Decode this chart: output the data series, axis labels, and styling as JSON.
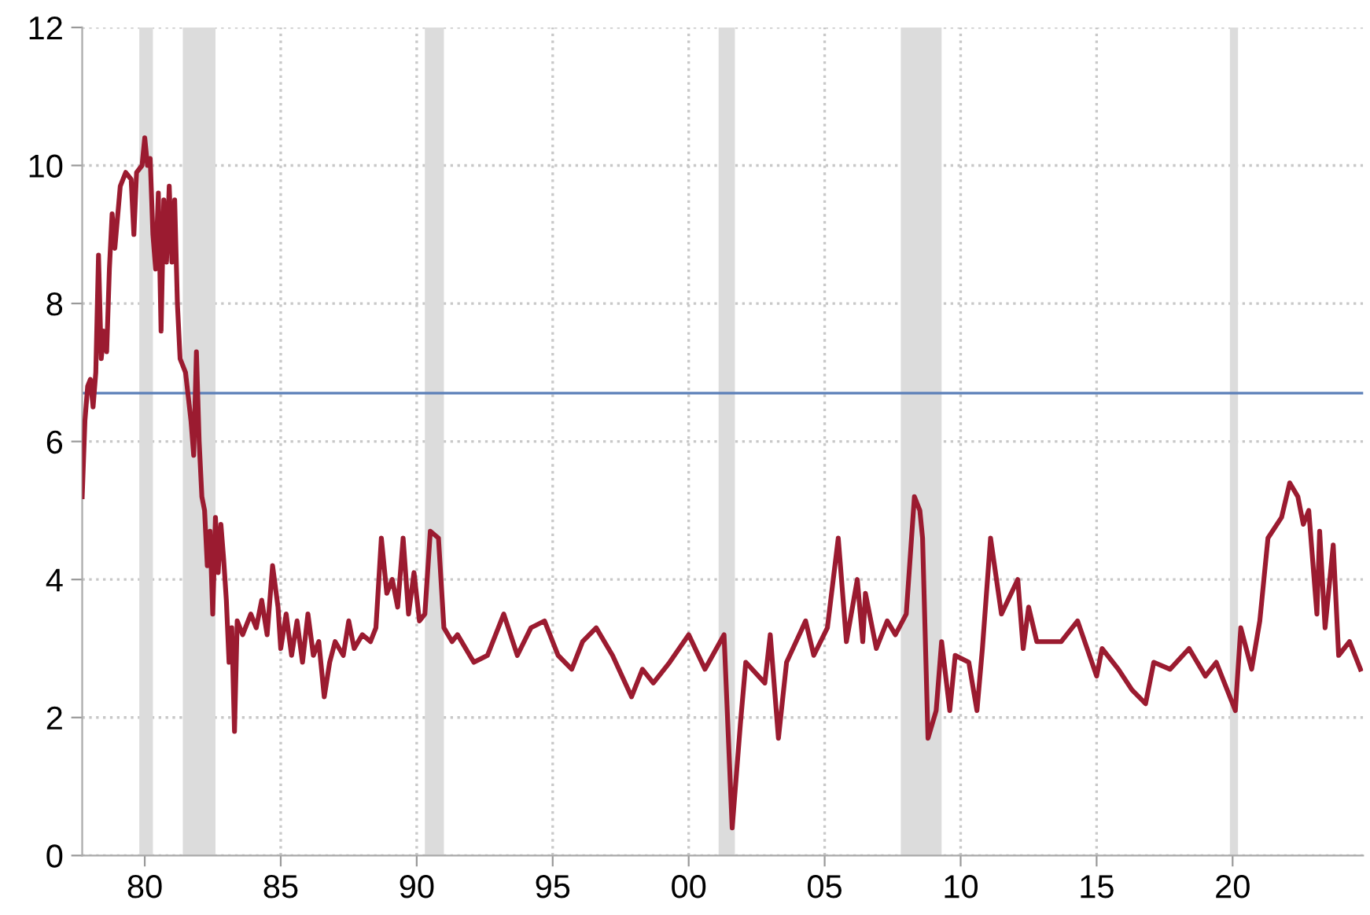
{
  "chart_data": {
    "type": "line",
    "x": [
      1977.7,
      1977.8,
      1977.9,
      1978.0,
      1978.1,
      1978.2,
      1978.3,
      1978.4,
      1978.5,
      1978.6,
      1978.7,
      1978.8,
      1978.9,
      1979.1,
      1979.3,
      1979.5,
      1979.6,
      1979.7,
      1979.9,
      1980.0,
      1980.1,
      1980.2,
      1980.3,
      1980.4,
      1980.5,
      1980.6,
      1980.7,
      1980.8,
      1980.9,
      1981.0,
      1981.1,
      1981.2,
      1981.3,
      1981.5,
      1981.7,
      1981.8,
      1981.9,
      1982.0,
      1982.1,
      1982.2,
      1982.3,
      1982.4,
      1982.5,
      1982.6,
      1982.7,
      1982.8,
      1982.9,
      1983.0,
      1983.1,
      1983.2,
      1983.3,
      1983.4,
      1983.6,
      1983.9,
      1984.1,
      1984.3,
      1984.5,
      1984.7,
      1984.9,
      1985.0,
      1985.2,
      1985.4,
      1985.6,
      1985.8,
      1986.0,
      1986.2,
      1986.4,
      1986.6,
      1986.8,
      1987.0,
      1987.3,
      1987.5,
      1987.7,
      1988.0,
      1988.3,
      1988.5,
      1988.7,
      1988.9,
      1989.1,
      1989.3,
      1989.5,
      1989.7,
      1989.9,
      1990.1,
      1990.3,
      1990.5,
      1990.8,
      1991.0,
      1991.3,
      1991.5,
      1992.1,
      1992.6,
      1993.2,
      1993.7,
      1994.2,
      1994.7,
      1995.2,
      1995.7,
      1996.1,
      1996.6,
      1997.2,
      1997.9,
      1998.3,
      1998.7,
      1999.3,
      2000.0,
      2000.6,
      2001.3,
      2001.6,
      2001.9,
      2002.1,
      2002.8,
      2003.0,
      2003.3,
      2003.6,
      2004.3,
      2004.6,
      2005.1,
      2005.5,
      2005.8,
      2006.2,
      2006.4,
      2006.5,
      2006.9,
      2007.3,
      2007.6,
      2008.0,
      2008.3,
      2008.5,
      2008.6,
      2008.8,
      2009.1,
      2009.3,
      2009.6,
      2009.8,
      2010.3,
      2010.6,
      2010.8,
      2011.1,
      2011.5,
      2012.1,
      2012.3,
      2012.5,
      2012.8,
      2013.7,
      2014.3,
      2015.0,
      2015.2,
      2015.8,
      2016.3,
      2016.8,
      2017.1,
      2017.7,
      2018.4,
      2019.0,
      2019.4,
      2020.1,
      2020.3,
      2020.7,
      2021.0,
      2021.3,
      2021.8,
      2022.1,
      2022.4,
      2022.6,
      2022.8,
      2023.1,
      2023.2,
      2023.4,
      2023.7,
      2023.9,
      2024.3,
      2024.7
    ],
    "series": [
      {
        "color": "#9b1b30",
        "values": [
          5.2,
          6.3,
          6.8,
          6.9,
          6.5,
          7.0,
          8.7,
          7.2,
          7.6,
          7.3,
          8.5,
          9.3,
          8.8,
          9.7,
          9.9,
          9.8,
          9.0,
          9.9,
          10.0,
          10.4,
          10.0,
          10.1,
          9.0,
          8.5,
          9.6,
          7.6,
          9.5,
          8.6,
          9.7,
          8.6,
          9.5,
          8.0,
          7.2,
          7.0,
          6.3,
          5.8,
          7.3,
          6.0,
          5.2,
          5.0,
          4.2,
          4.7,
          3.5,
          4.9,
          4.1,
          4.8,
          4.3,
          3.7,
          2.8,
          3.3,
          1.8,
          3.4,
          3.2,
          3.5,
          3.3,
          3.7,
          3.2,
          4.2,
          3.6,
          3.0,
          3.5,
          2.9,
          3.4,
          2.8,
          3.5,
          2.9,
          3.1,
          2.3,
          2.8,
          3.1,
          2.9,
          3.4,
          3.0,
          3.2,
          3.1,
          3.3,
          4.6,
          3.8,
          4.0,
          3.6,
          4.6,
          3.5,
          4.1,
          3.4,
          3.5,
          4.7,
          4.6,
          3.3,
          3.1,
          3.2,
          2.8,
          2.9,
          3.5,
          2.9,
          3.3,
          3.4,
          2.9,
          2.7,
          3.1,
          3.3,
          2.9,
          2.3,
          2.7,
          2.5,
          2.8,
          3.2,
          2.7,
          3.2,
          0.4,
          1.9,
          2.8,
          2.5,
          3.2,
          1.7,
          2.8,
          3.4,
          2.9,
          3.3,
          4.6,
          3.1,
          4.0,
          3.1,
          3.8,
          3.0,
          3.4,
          3.2,
          3.5,
          5.2,
          5.0,
          4.6,
          1.7,
          2.1,
          3.1,
          2.1,
          2.9,
          2.8,
          2.1,
          3.0,
          4.6,
          3.5,
          4.0,
          3.0,
          3.6,
          3.1,
          3.1,
          3.4,
          2.6,
          3.0,
          2.7,
          2.4,
          2.2,
          2.8,
          2.7,
          3.0,
          2.6,
          2.8,
          2.1,
          3.3,
          2.7,
          3.4,
          4.6,
          4.9,
          5.4,
          5.2,
          4.8,
          5.0,
          3.5,
          4.7,
          3.3,
          4.5,
          2.9,
          3.1,
          2.7
        ]
      }
    ],
    "xlim": [
      1977.7,
      2024.8
    ],
    "ylim": [
      0,
      12
    ],
    "xticks": [
      {
        "value": 1980,
        "label": "80"
      },
      {
        "value": 1985,
        "label": "85"
      },
      {
        "value": 1990,
        "label": "90"
      },
      {
        "value": 1995,
        "label": "95"
      },
      {
        "value": 2000,
        "label": "00"
      },
      {
        "value": 2005,
        "label": "05"
      },
      {
        "value": 2010,
        "label": "10"
      },
      {
        "value": 2015,
        "label": "15"
      },
      {
        "value": 2020,
        "label": "20"
      }
    ],
    "yticks": [
      0,
      2,
      4,
      6,
      8,
      10,
      12
    ],
    "ref_lines": [
      {
        "axis": "y",
        "value": 6.7,
        "color": "#5b7fb8",
        "line_style": "solid"
      }
    ],
    "bands": [
      {
        "axis": "x",
        "from": 1979.8,
        "to": 1980.3,
        "color": "#dcdcdc"
      },
      {
        "axis": "x",
        "from": 1981.4,
        "to": 1982.6,
        "color": "#dcdcdc"
      },
      {
        "axis": "x",
        "from": 1990.3,
        "to": 1991.0,
        "color": "#dcdcdc"
      },
      {
        "axis": "x",
        "from": 2001.1,
        "to": 2001.7,
        "color": "#dcdcdc"
      },
      {
        "axis": "x",
        "from": 2007.8,
        "to": 2009.3,
        "color": "#dcdcdc"
      },
      {
        "axis": "x",
        "from": 2019.9,
        "to": 2020.2,
        "color": "#dcdcdc"
      }
    ],
    "grid": true,
    "marker": "none",
    "line_style": "solid"
  }
}
